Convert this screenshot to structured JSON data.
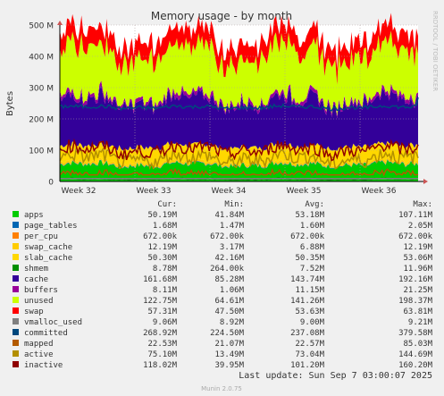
{
  "chart_data": {
    "type": "area",
    "title": "Memory usage - by month",
    "ylabel": "Bytes",
    "side_label": "RRDTOOL / TOBI OETIKER",
    "ylim": [
      0,
      500
    ],
    "yticks": [
      0,
      100,
      200,
      300,
      400,
      500
    ],
    "ytick_labels": [
      "0",
      "100 M",
      "200 M",
      "300 M",
      "400 M",
      "500 M"
    ],
    "week_labels": [
      "Week 32",
      "Week 33",
      "Week 34",
      "Week 35",
      "Week 36"
    ],
    "grid": true,
    "stack_order": [
      "apps",
      "page_tables",
      "per_cpu",
      "swap_cache",
      "slab_cache",
      "cache",
      "buffers",
      "unused",
      "swap"
    ],
    "line_series": [
      "shmem",
      "vmalloc_used",
      "committed",
      "mapped",
      "active",
      "inactive"
    ],
    "columns": [
      "Cur:",
      "Min:",
      "Avg:",
      "Max:"
    ],
    "series": [
      {
        "name": "apps",
        "color": "#00cc00",
        "cur": "50.19M",
        "min": "41.84M",
        "avg": "53.18M",
        "max": "107.11M"
      },
      {
        "name": "page_tables",
        "color": "#0066b3",
        "cur": "1.68M",
        "min": "1.47M",
        "avg": "1.60M",
        "max": "2.05M"
      },
      {
        "name": "per_cpu",
        "color": "#ff8000",
        "cur": "672.00k",
        "min": "672.00k",
        "avg": "672.00k",
        "max": "672.00k"
      },
      {
        "name": "swap_cache",
        "color": "#ffcc00",
        "cur": "12.19M",
        "min": "3.17M",
        "avg": "6.88M",
        "max": "12.19M"
      },
      {
        "name": "slab_cache",
        "color": "#ffd800",
        "cur": "50.30M",
        "min": "42.16M",
        "avg": "50.35M",
        "max": "53.06M"
      },
      {
        "name": "shmem",
        "color": "#008f00",
        "cur": "8.78M",
        "min": "264.00k",
        "avg": "7.52M",
        "max": "11.96M"
      },
      {
        "name": "cache",
        "color": "#330099",
        "cur": "161.68M",
        "min": "85.28M",
        "avg": "143.74M",
        "max": "192.16M"
      },
      {
        "name": "buffers",
        "color": "#990099",
        "cur": "8.11M",
        "min": "1.06M",
        "avg": "11.15M",
        "max": "21.25M"
      },
      {
        "name": "unused",
        "color": "#ccff00",
        "cur": "122.75M",
        "min": "64.61M",
        "avg": "141.26M",
        "max": "198.37M"
      },
      {
        "name": "swap",
        "color": "#ff0000",
        "cur": "57.31M",
        "min": "47.50M",
        "avg": "53.63M",
        "max": "63.81M"
      },
      {
        "name": "vmalloc_used",
        "color": "#808080",
        "cur": "9.06M",
        "min": "8.92M",
        "avg": "9.00M",
        "max": "9.21M"
      },
      {
        "name": "committed",
        "color": "#00487d",
        "cur": "268.92M",
        "min": "224.50M",
        "avg": "237.08M",
        "max": "379.58M"
      },
      {
        "name": "mapped",
        "color": "#b35a00",
        "cur": "22.53M",
        "min": "21.07M",
        "avg": "22.57M",
        "max": "85.03M"
      },
      {
        "name": "active",
        "color": "#b38f00",
        "cur": "75.10M",
        "min": "13.49M",
        "avg": "73.04M",
        "max": "144.69M"
      },
      {
        "name": "inactive",
        "color": "#8f0000",
        "cur": "118.02M",
        "min": "39.95M",
        "avg": "101.20M",
        "max": "160.20M"
      }
    ],
    "last_update": "Last update: Sun Sep  7 03:00:07 2025",
    "footer": "Munin 2.0.75"
  }
}
